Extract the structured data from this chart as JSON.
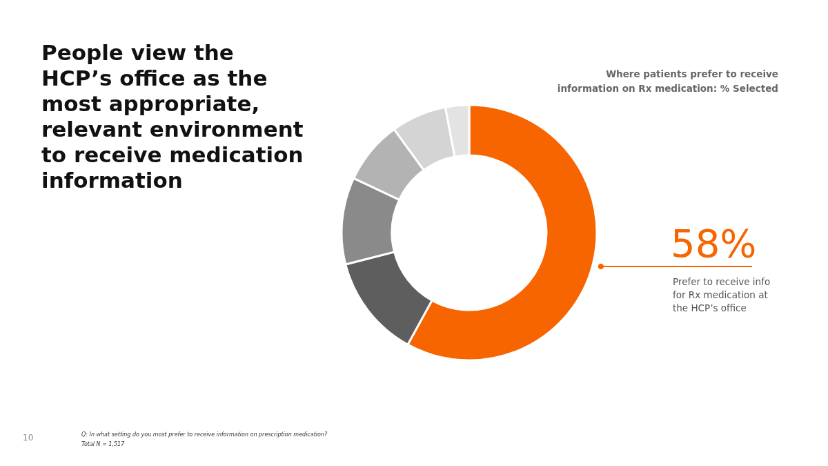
{
  "chart_data": {
    "type": "donut",
    "title": "People view the HCP’s office as the most appropriate, relevant environment to receive medication information",
    "subtitle": "Where patients prefer to receive information on Rx medication: % Selected",
    "categories": [
      "Prefer to receive info for Rx medication at the HCP’s office",
      null,
      null,
      null,
      null,
      null
    ],
    "values": [
      58,
      13,
      11,
      8,
      7,
      3
    ],
    "colors": [
      "#f76500",
      "#5e5e5e",
      "#8a8a8a",
      "#b3b3b3",
      "#d4d4d4",
      "#e3e3e3"
    ],
    "value_labels": [
      "58%",
      null,
      null,
      null,
      null,
      null
    ],
    "annotations": [
      "Q: In what setting do you most prefer to receive information on prescription medication?",
      "Total N = 1,517",
      "10"
    ]
  }
}
